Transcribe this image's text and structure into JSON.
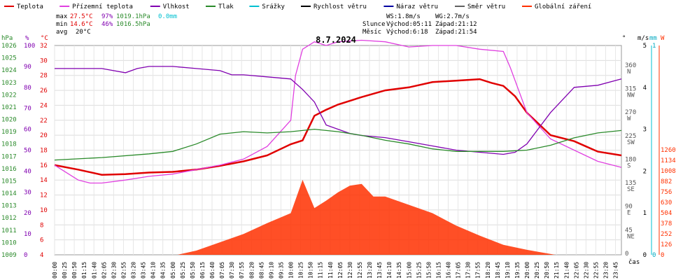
{
  "chart_data": {
    "type": "line",
    "title": "8.7.2024",
    "legend": [
      {
        "label": "Teplota",
        "color": "#e00000"
      },
      {
        "label": "Přízemní teplota",
        "color": "#e040e0"
      },
      {
        "label": "Vlhkost",
        "color": "#8000b0"
      },
      {
        "label": "Tlak",
        "color": "#2a8a2a"
      },
      {
        "label": "Srážky",
        "color": "#00c0d0"
      },
      {
        "label": "Rychlost větru",
        "color": "#000000"
      },
      {
        "label": "Náraz větru",
        "color": "#0000a0"
      },
      {
        "label": "Směr větru",
        "color": "#606060"
      },
      {
        "label": "Globální záření",
        "color": "#ff3000"
      }
    ],
    "stats": {
      "max_label": "max",
      "min_label": "min",
      "avg_label": "avg",
      "max_temp": "27.5°C",
      "max_hum": "97%",
      "max_press": "1019.1hPa",
      "max_rain": "0.0mm",
      "min_temp": "14.6°C",
      "min_hum": "46%",
      "min_press": "1016.5hPa",
      "avg_temp": "20°C"
    },
    "info": {
      "ws": "WS:1.8m/s",
      "wg": "WG:2.7m/s",
      "slunce": "Slunce",
      "sun_rise": "Východ:05:11",
      "sun_set": "Západ:21:12",
      "mesic": "Měsíc",
      "moon_rise": "Východ:6:18",
      "moon_set": "Západ:21:54"
    },
    "axes": {
      "hpa": {
        "label": "hPa",
        "range": [
          1009,
          1026
        ],
        "ticks": [
          "1026",
          "1025",
          "1024",
          "1023",
          "1022",
          "1021",
          "1020",
          "1019",
          "1018",
          "1017",
          "1016",
          "1015",
          "1014",
          "1013",
          "1012",
          "1011",
          "1010",
          "1009"
        ]
      },
      "pct": {
        "label": "%",
        "range": [
          0,
          100
        ],
        "ticks": [
          "100",
          "90",
          "80",
          "70",
          "60",
          "50",
          "40",
          "30",
          "20",
          "10",
          "0"
        ]
      },
      "degc": {
        "label": "°C",
        "range": [
          4,
          32
        ],
        "ticks": [
          "32",
          "30",
          "28",
          "26",
          "24",
          "22",
          "20",
          "18",
          "16",
          "14",
          "12",
          "10",
          "8",
          "6",
          "4"
        ]
      },
      "dir": {
        "label": "°",
        "ticks": [
          {
            "deg": "360",
            "dir": "N",
            "v": 360
          },
          {
            "deg": "315",
            "dir": "NW",
            "v": 315
          },
          {
            "deg": "270",
            "dir": "W",
            "v": 270
          },
          {
            "deg": "225",
            "dir": "SW",
            "v": 225
          },
          {
            "deg": "180",
            "dir": "S",
            "v": 180
          },
          {
            "deg": "135",
            "dir": "SE",
            "v": 135
          },
          {
            "deg": "90",
            "dir": "E",
            "v": 90
          },
          {
            "deg": "45",
            "dir": "NE",
            "v": 45
          },
          {
            "deg": "0",
            "dir": "",
            "v": 0
          }
        ]
      },
      "ms": {
        "label": "m/s",
        "ticks": [
          "5",
          "4",
          "3",
          "2",
          "1",
          "0"
        ]
      },
      "mm": {
        "label": "mm",
        "ticks": [
          "1",
          "0"
        ]
      },
      "w": {
        "label": "W",
        "ticks": [
          "1260",
          "1134",
          "1008",
          "882",
          "756",
          "630",
          "504",
          "378",
          "252",
          "126",
          "0"
        ]
      },
      "xlabel": "čas"
    },
    "x_ticks": [
      "00:00",
      "00:25",
      "00:50",
      "01:15",
      "01:40",
      "02:05",
      "02:30",
      "02:55",
      "03:20",
      "03:45",
      "04:10",
      "04:35",
      "05:00",
      "05:25",
      "05:50",
      "06:15",
      "06:40",
      "07:05",
      "07:30",
      "07:55",
      "08:20",
      "08:45",
      "09:10",
      "09:35",
      "10:00",
      "10:25",
      "10:50",
      "11:15",
      "11:40",
      "12:05",
      "12:30",
      "12:55",
      "13:20",
      "13:45",
      "14:10",
      "14:35",
      "15:00",
      "15:25",
      "15:50",
      "16:15",
      "16:40",
      "17:05",
      "17:30",
      "17:55",
      "18:20",
      "18:45",
      "19:10",
      "19:35",
      "20:00",
      "20:25",
      "20:50",
      "21:15",
      "21:40",
      "22:05",
      "22:30",
      "22:55",
      "23:20",
      "23:45"
    ],
    "series": [
      {
        "name": "Teplota",
        "unit": "°C",
        "hours": [
          0,
          1,
          2,
          3,
          4,
          5,
          6,
          7,
          8,
          9,
          10,
          10.5,
          11,
          11.5,
          12,
          13,
          14,
          15,
          16,
          17,
          18,
          18.5,
          19,
          19.5,
          20,
          21,
          22,
          22.5,
          23,
          24
        ],
        "values": [
          16.0,
          15.4,
          14.7,
          14.8,
          15.0,
          15.1,
          15.4,
          15.9,
          16.5,
          17.3,
          18.8,
          19.3,
          22.6,
          23.4,
          24.1,
          25.1,
          26.0,
          26.4,
          27.1,
          27.3,
          27.5,
          27.0,
          26.6,
          25.2,
          23.0,
          20.0,
          19.2,
          18.5,
          17.8,
          17.3
        ]
      },
      {
        "name": "Přízemní teplota",
        "unit": "°C",
        "hours": [
          0,
          1,
          1.5,
          2,
          3,
          4,
          5,
          6,
          7,
          8,
          9,
          10,
          10.2,
          10.5,
          11,
          11.5,
          12,
          13,
          14,
          15,
          16,
          17,
          18,
          19,
          19.3,
          20,
          21,
          22,
          23,
          24
        ],
        "values": [
          16.0,
          14.0,
          13.6,
          13.6,
          14.0,
          14.5,
          14.8,
          15.4,
          16.0,
          16.8,
          18.5,
          22.0,
          28.0,
          31.5,
          32.5,
          32.0,
          32.5,
          32.7,
          32.5,
          31.8,
          32.0,
          32.0,
          31.5,
          31.2,
          29.0,
          23.0,
          19.5,
          18.0,
          16.5,
          15.7
        ]
      },
      {
        "name": "Vlhkost",
        "unit": "%",
        "hours": [
          0,
          1,
          2,
          3,
          3.5,
          4,
          5,
          6,
          7,
          7.5,
          8,
          9,
          10,
          10.5,
          11,
          11.5,
          12,
          12.5,
          13,
          14,
          15,
          16,
          17,
          18,
          19,
          19.5,
          20,
          21,
          22,
          23,
          24
        ],
        "values": [
          89,
          89,
          89,
          87,
          89,
          90,
          90,
          89,
          88,
          86,
          86,
          85,
          84,
          79,
          73,
          62,
          60,
          58,
          57,
          56,
          54,
          52,
          50,
          49,
          48,
          49,
          53,
          68,
          80,
          81,
          84
        ]
      },
      {
        "name": "Tlak",
        "unit": "hPa",
        "hours": [
          0,
          2,
          4,
          5,
          6,
          7,
          8,
          9,
          10,
          11,
          12,
          13,
          14,
          15,
          16,
          17,
          18,
          19,
          20,
          21,
          22,
          23,
          24
        ],
        "values": [
          1016.7,
          1016.9,
          1017.2,
          1017.4,
          1018.0,
          1018.8,
          1019.0,
          1018.9,
          1019.0,
          1019.2,
          1019.0,
          1018.7,
          1018.3,
          1018.0,
          1017.6,
          1017.4,
          1017.4,
          1017.4,
          1017.5,
          1017.9,
          1018.5,
          1018.9,
          1019.1
        ]
      },
      {
        "name": "Globální záření",
        "unit": "W",
        "hours": [
          5.2,
          6,
          7,
          8,
          9,
          10,
          10.5,
          11,
          11.5,
          12,
          12.5,
          13,
          13.5,
          14,
          15,
          16,
          17,
          18,
          19,
          20,
          21.2
        ],
        "values": [
          0,
          50,
          150,
          250,
          380,
          500,
          900,
          560,
          650,
          750,
          830,
          850,
          700,
          700,
          600,
          500,
          350,
          230,
          120,
          60,
          0
        ]
      }
    ]
  }
}
